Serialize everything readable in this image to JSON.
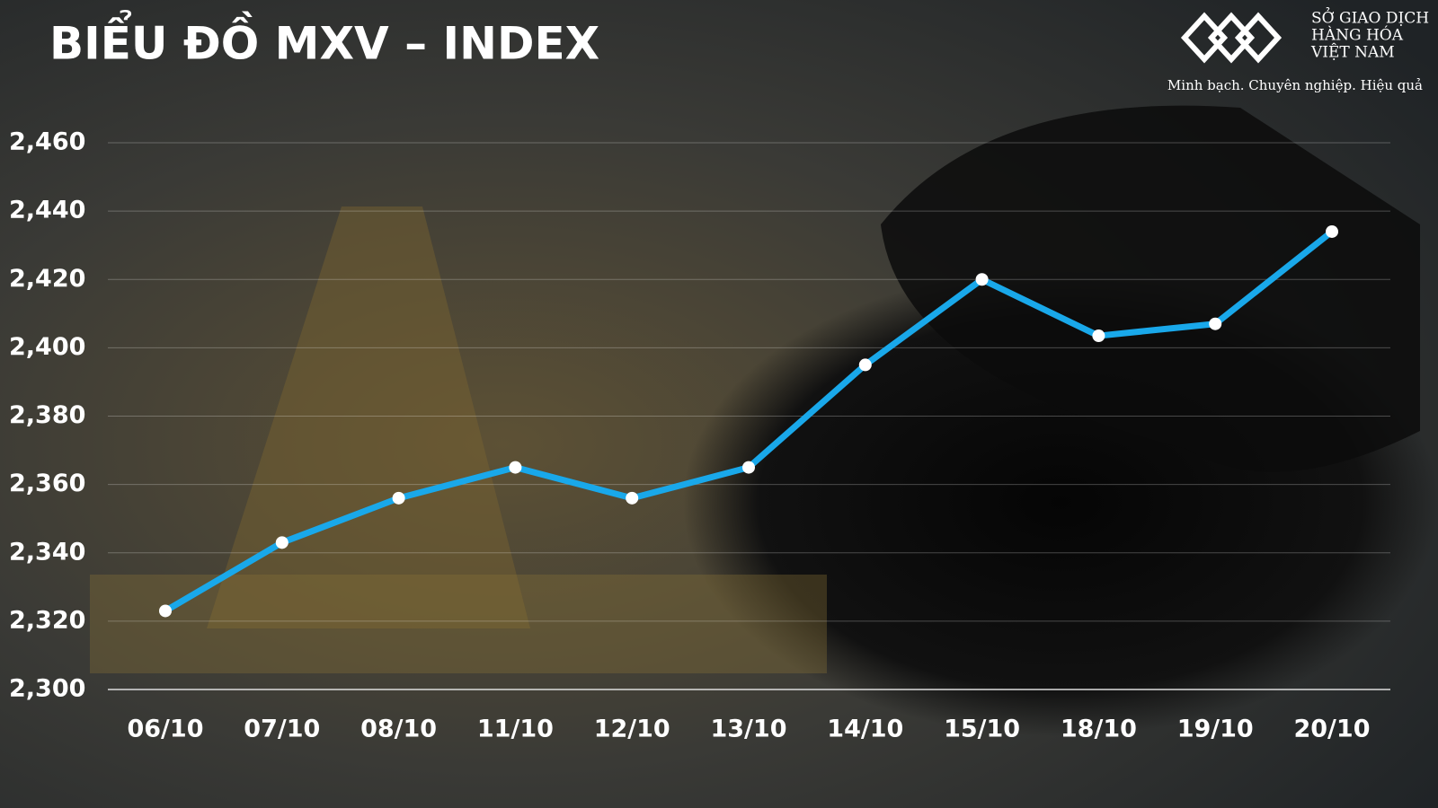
{
  "chart_data": {
    "type": "line",
    "title": "BIỂU ĐỒ MXV – INDEX",
    "logo": {
      "lines": [
        "SỞ GIAO DỊCH",
        "HÀNG HÓA",
        "VIỆT NAM"
      ],
      "tagline": "Minh bạch. Chuyên nghiệp. Hiệu quả"
    },
    "categories": [
      "06/10",
      "07/10",
      "08/10",
      "11/10",
      "12/10",
      "13/10",
      "14/10",
      "15/10",
      "18/10",
      "19/10",
      "20/10"
    ],
    "values": [
      2323,
      2343,
      2356,
      2365,
      2356,
      2365,
      2395,
      2420,
      2403.5,
      2407,
      2434
    ],
    "color": "#19a8ea",
    "marker_color": "#ffffff",
    "ylim": [
      2300,
      2460
    ],
    "yticks": [
      {
        "value": 2300,
        "label": "2,300"
      },
      {
        "value": 2320,
        "label": "2,320"
      },
      {
        "value": 2340,
        "label": "2,340"
      },
      {
        "value": 2360,
        "label": "2,360"
      },
      {
        "value": 2380,
        "label": "2,380"
      },
      {
        "value": 2400,
        "label": "2,400"
      },
      {
        "value": 2420,
        "label": "2,420"
      },
      {
        "value": 2440,
        "label": "2,440"
      },
      {
        "value": 2460,
        "label": "2,460"
      }
    ],
    "grid": true
  }
}
